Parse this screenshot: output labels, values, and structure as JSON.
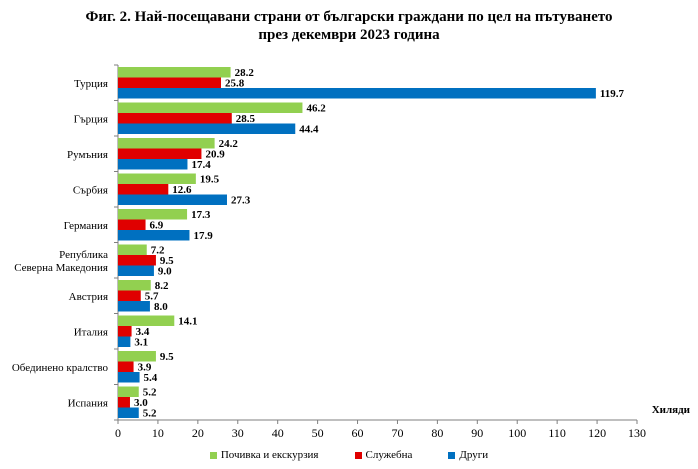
{
  "chart_data": {
    "type": "bar",
    "orientation": "horizontal",
    "title_line1": "Фиг. 2. Най-посещавани страни от български граждани по цел на пътуването",
    "title_line2": "през декември 2023 година",
    "xlabel": "Хиляди",
    "xlim": [
      0,
      130
    ],
    "xticks": [
      0,
      10,
      20,
      30,
      40,
      50,
      60,
      70,
      80,
      90,
      100,
      110,
      120,
      130
    ],
    "grid": false,
    "legend_position": "bottom",
    "categories": [
      [
        "Турция"
      ],
      [
        "Гърция"
      ],
      [
        "Румъния"
      ],
      [
        "Сърбия"
      ],
      [
        "Германия"
      ],
      [
        "Република",
        "Северна Македония"
      ],
      [
        "Австрия"
      ],
      [
        "Италия"
      ],
      [
        "Обединено кралство"
      ],
      [
        "Испания"
      ]
    ],
    "series": [
      {
        "name": "Почивка и екскурзия",
        "color": "#92d050",
        "values": [
          28.2,
          46.2,
          24.2,
          19.5,
          17.3,
          7.2,
          8.2,
          14.1,
          9.5,
          5.2
        ]
      },
      {
        "name": "Служебна",
        "color": "#e00000",
        "values": [
          25.8,
          28.5,
          20.9,
          12.6,
          6.9,
          9.5,
          5.7,
          3.4,
          3.9,
          3.0
        ]
      },
      {
        "name": "Други",
        "color": "#0070c0",
        "values": [
          119.7,
          44.4,
          17.4,
          27.3,
          17.9,
          9.0,
          8.0,
          3.1,
          5.4,
          5.2
        ]
      }
    ]
  }
}
